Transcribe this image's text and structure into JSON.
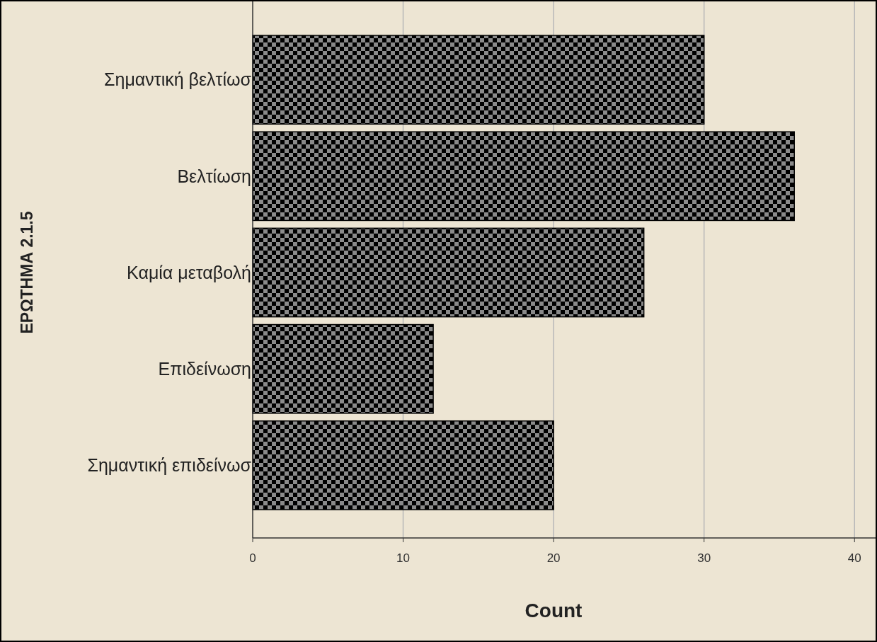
{
  "chart_data": {
    "type": "bar",
    "orientation": "horizontal",
    "xlabel": "Count",
    "ylabel": "ΕΡΩΤΗΜΑ 2.1.5",
    "categories": [
      "Σημαντική βελτίωσ",
      "Βελτίωση",
      "Καμία μεταβολή",
      "Επιδείνωση",
      "Σημαντική επιδείνωσ"
    ],
    "values": [
      30,
      36,
      26,
      12,
      20
    ],
    "color": "#000000",
    "xlim": [
      0,
      41.4
    ],
    "xticks": [
      0,
      10,
      20,
      30,
      40
    ],
    "grid": "x"
  }
}
